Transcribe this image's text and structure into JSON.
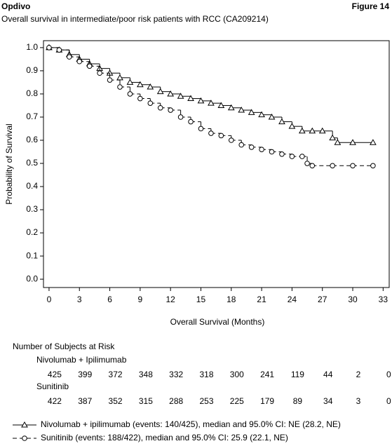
{
  "chart_data": {
    "type": "step",
    "header_left": "Opdivo",
    "header_right": "Figure 14",
    "title": "Overall survival in intermediate/poor risk patients with RCC (CA209214)",
    "x_label": "Overall Survival (Months)",
    "y_label": "Probability of Survival",
    "xlim": [
      -0.55,
      33.6
    ],
    "ylim": [
      -0.036,
      1.03
    ],
    "xticks": [
      0,
      3,
      6,
      9,
      12,
      15,
      18,
      21,
      24,
      27,
      30,
      33
    ],
    "yticks": [
      {
        "value": 0,
        "label": "0.0"
      },
      0.1,
      0.2,
      0.3,
      0.4,
      0.5,
      0.6,
      0.7,
      0.8,
      0.9,
      {
        "value": 1,
        "label": "1.0"
      }
    ],
    "series": [
      {
        "name": "Nivolumab + ipilimumab (events: 140/425), median and 95.0% CI: NE (28.2, NE)",
        "color": "#000000",
        "marker": "triangle",
        "dash": false,
        "x": [
          0,
          1,
          2,
          3,
          4,
          5,
          6,
          7,
          8,
          9,
          10,
          11,
          12,
          13,
          14,
          15,
          16,
          17,
          18,
          19,
          20,
          21,
          22,
          23,
          24,
          25,
          26,
          27,
          28,
          28.5,
          30,
          32
        ],
        "values": [
          1.0,
          0.99,
          0.97,
          0.95,
          0.93,
          0.91,
          0.89,
          0.87,
          0.85,
          0.84,
          0.83,
          0.81,
          0.8,
          0.79,
          0.78,
          0.77,
          0.76,
          0.75,
          0.74,
          0.73,
          0.72,
          0.71,
          0.7,
          0.68,
          0.66,
          0.64,
          0.64,
          0.64,
          0.61,
          0.59,
          0.59,
          0.59
        ]
      },
      {
        "name": "Sunitinib (events: 188/422), median and 95.0% CI: 25.9 (22.1, NE)",
        "color": "#000000",
        "marker": "circle",
        "dash": true,
        "x": [
          0,
          1,
          2,
          3,
          4,
          5,
          6,
          7,
          8,
          9,
          10,
          11,
          12,
          13,
          14,
          15,
          16,
          17,
          18,
          19,
          20,
          21,
          22,
          23,
          24,
          25,
          25.5,
          26,
          28,
          30,
          32
        ],
        "values": [
          1.0,
          0.99,
          0.96,
          0.94,
          0.92,
          0.89,
          0.86,
          0.83,
          0.8,
          0.78,
          0.76,
          0.74,
          0.73,
          0.7,
          0.68,
          0.65,
          0.63,
          0.62,
          0.6,
          0.58,
          0.57,
          0.56,
          0.55,
          0.54,
          0.53,
          0.53,
          0.5,
          0.49,
          0.49,
          0.49,
          0.49
        ]
      }
    ],
    "risk_table": {
      "title": "Number of Subjects at Risk",
      "rows": [
        {
          "name": "Nivolumab + Ipilimumab",
          "counts": [
            425,
            399,
            372,
            348,
            332,
            318,
            300,
            241,
            119,
            44,
            2,
            0
          ]
        },
        {
          "name": "Sunitinib",
          "counts": [
            422,
            387,
            352,
            315,
            288,
            253,
            225,
            179,
            89,
            34,
            3,
            0
          ]
        }
      ]
    }
  }
}
